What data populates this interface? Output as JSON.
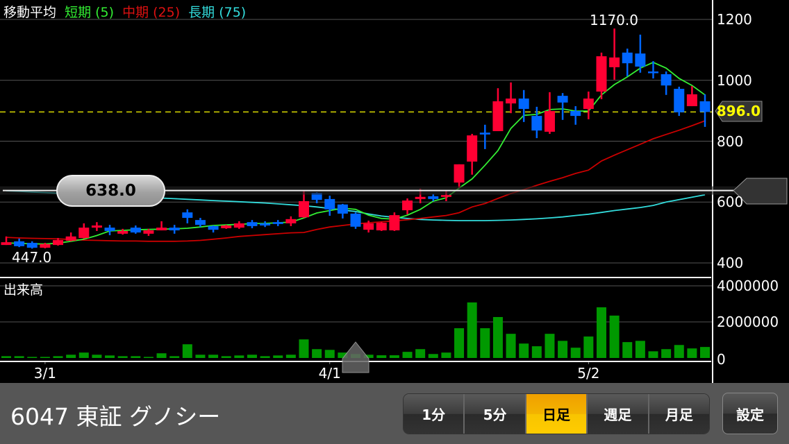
{
  "legend": {
    "title": "移動平均",
    "short": "短期 (5)",
    "mid": "中期 (25)",
    "long": "長期 (75)"
  },
  "colors": {
    "up": "#ff0033",
    "down": "#0066ff",
    "ma_short": "#33ee33",
    "ma_mid": "#cc0000",
    "ma_long": "#33dddd",
    "volume": "#009900",
    "current_price_line": "#ffff00",
    "active_button": "#f8c000"
  },
  "volume_panel": {
    "title": "出来高"
  },
  "annotations": {
    "high": "1170.0",
    "low": "447.0",
    "crosshair_price": "638.0",
    "current_price": "896.0"
  },
  "chart_data": [
    {
      "type": "candlestick",
      "ylim": [
        400,
        1200
      ],
      "yticks": [
        "1200",
        "1000",
        "800",
        "600",
        "400"
      ],
      "ytick_values": [
        1200,
        1000,
        800,
        600,
        400
      ],
      "xtick_labels": [
        {
          "label": "3/1",
          "index": 3
        },
        {
          "label": "4/1",
          "index": 25
        },
        {
          "label": "5/2",
          "index": 45
        }
      ],
      "grid": true,
      "current_price": 896,
      "crosshair_price": 638,
      "crosshair_index": 27,
      "ohlc": [
        [
          459,
          487,
          459,
          468
        ],
        [
          471,
          480,
          452,
          455
        ],
        [
          466,
          471,
          447,
          450
        ],
        [
          450,
          466,
          448,
          462
        ],
        [
          459,
          482,
          457,
          475
        ],
        [
          473,
          500,
          471,
          487
        ],
        [
          482,
          530,
          480,
          516
        ],
        [
          516,
          534,
          505,
          523
        ],
        [
          516,
          525,
          491,
          505
        ],
        [
          496,
          512,
          493,
          505
        ],
        [
          516,
          523,
          496,
          500
        ],
        [
          496,
          512,
          489,
          507
        ],
        [
          507,
          537,
          507,
          516
        ],
        [
          516,
          525,
          496,
          507
        ],
        [
          566,
          576,
          530,
          548
        ],
        [
          541,
          548,
          518,
          525
        ],
        [
          521,
          523,
          500,
          509
        ],
        [
          514,
          525,
          512,
          523
        ],
        [
          516,
          537,
          512,
          530
        ],
        [
          534,
          541,
          514,
          521
        ],
        [
          530,
          537,
          518,
          523
        ],
        [
          534,
          541,
          521,
          528
        ],
        [
          530,
          553,
          521,
          544
        ],
        [
          550,
          639,
          548,
          603
        ],
        [
          630,
          632,
          596,
          607
        ],
        [
          610,
          621,
          555,
          576
        ],
        [
          592,
          594,
          546,
          562
        ],
        [
          562,
          566,
          512,
          519
        ],
        [
          509,
          539,
          500,
          530
        ],
        [
          507,
          535,
          505,
          532
        ],
        [
          507,
          566,
          505,
          557
        ],
        [
          573,
          612,
          560,
          605
        ],
        [
          610,
          644,
          596,
          617
        ],
        [
          619,
          626,
          603,
          610
        ],
        [
          617,
          637,
          603,
          623
        ],
        [
          664,
          724,
          646,
          724
        ],
        [
          733,
          824,
          690,
          819
        ],
        [
          828,
          854,
          774,
          822
        ],
        [
          833,
          974,
          833,
          931
        ],
        [
          924,
          993,
          892,
          940
        ],
        [
          940,
          968,
          863,
          906
        ],
        [
          883,
          913,
          810,
          835
        ],
        [
          831,
          961,
          824,
          899
        ],
        [
          949,
          958,
          870,
          927
        ],
        [
          899,
          915,
          854,
          883
        ],
        [
          906,
          963,
          872,
          940
        ],
        [
          963,
          1091,
          938,
          1079
        ],
        [
          1043,
          1170,
          1002,
          1075
        ],
        [
          1091,
          1104,
          1013,
          1056
        ],
        [
          1088,
          1150,
          1025,
          1045
        ],
        [
          1029,
          1063,
          1006,
          1025
        ],
        [
          1020,
          1029,
          952,
          983
        ],
        [
          972,
          979,
          883,
          895
        ],
        [
          915,
          981,
          915,
          954
        ],
        [
          931,
          954,
          847,
          896
        ]
      ],
      "ma_short": [
        466,
        464,
        463,
        462,
        465,
        471,
        478,
        490,
        505,
        507,
        509,
        510,
        511,
        512,
        514,
        518,
        523,
        525,
        527,
        529,
        530,
        532,
        534,
        548,
        564,
        572,
        580,
        576,
        557,
        546,
        544,
        557,
        576,
        603,
        614,
        646,
        676,
        721,
        769,
        842,
        885,
        888,
        904,
        906,
        899,
        899,
        952,
        986,
        1011,
        1040,
        1059,
        1040,
        1006,
        983,
        952
      ],
      "ma_mid": [
        484,
        482,
        481,
        480,
        479,
        477,
        475,
        474,
        473,
        472,
        472,
        471,
        471,
        471,
        472,
        474,
        478,
        482,
        487,
        490,
        493,
        496,
        499,
        500,
        510,
        518,
        523,
        528,
        532,
        535,
        538,
        542,
        546,
        551,
        556,
        565,
        584,
        595,
        612,
        628,
        641,
        655,
        668,
        680,
        694,
        705,
        735,
        754,
        772,
        790,
        808,
        822,
        836,
        851,
        867
      ],
      "ma_long": [
        637,
        635,
        633,
        631,
        629,
        627,
        625,
        623,
        621,
        619,
        617,
        615,
        613,
        611,
        609,
        607,
        605,
        603,
        601,
        599,
        597,
        594,
        591,
        588,
        584,
        579,
        574,
        569,
        561,
        554,
        550,
        546,
        543,
        541,
        540,
        539,
        539,
        539,
        540,
        541,
        543,
        545,
        548,
        551,
        556,
        560,
        566,
        572,
        577,
        582,
        589,
        600,
        608,
        616,
        624
      ]
    },
    {
      "type": "bar",
      "ylim": [
        0,
        4000000
      ],
      "yticks": [
        "4000000",
        "2000000",
        "0"
      ],
      "ytick_values": [
        4000000,
        2000000,
        0
      ],
      "values": [
        100000,
        100000,
        60000,
        60000,
        100000,
        180000,
        300000,
        180000,
        140000,
        100000,
        100000,
        60000,
        260000,
        100000,
        760000,
        180000,
        180000,
        100000,
        140000,
        180000,
        100000,
        140000,
        180000,
        1030000,
        490000,
        450000,
        300000,
        220000,
        180000,
        150000,
        150000,
        340000,
        490000,
        220000,
        300000,
        1650000,
        3080000,
        1650000,
        2270000,
        1340000,
        800000,
        650000,
        1340000,
        950000,
        570000,
        1190000,
        2810000,
        2350000,
        880000,
        950000,
        370000,
        490000,
        720000,
        530000,
        610000
      ]
    }
  ],
  "footer": {
    "symbol": "6047 東証 グノシー",
    "periods": [
      {
        "label": "1分",
        "active": false
      },
      {
        "label": "5分",
        "active": false
      },
      {
        "label": "日足",
        "active": true
      },
      {
        "label": "週足",
        "active": false
      },
      {
        "label": "月足",
        "active": false
      }
    ],
    "settings_label": "設定"
  }
}
